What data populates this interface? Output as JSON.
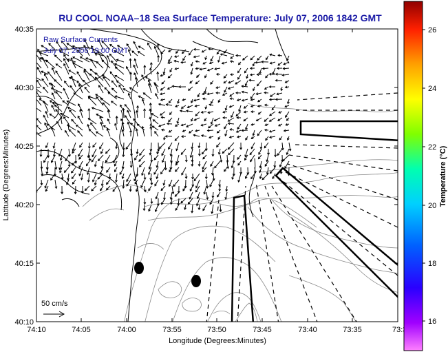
{
  "title": "RU COOL  NOAA–18  Sea Surface Temperature:  July 07, 2006 1842 GMT",
  "overlay": {
    "line1": "Raw Surface Currents",
    "line2": "July 07, 2006 19:00 GMT"
  },
  "scale_label": "50 cm/s",
  "x_axis": {
    "label": "Longitude (Degrees:Minutes)",
    "ticks": [
      "74:10",
      "74:05",
      "74:00",
      "73:55",
      "73:50",
      "73:45",
      "73:40",
      "73:35",
      "73:3"
    ]
  },
  "y_axis": {
    "label": "Latitude (Degrees:Minutes)",
    "ticks": [
      "40:35",
      "40:30",
      "40:25",
      "40:20",
      "40:15",
      "40:10"
    ]
  },
  "colorbar": {
    "label": "Temperature (°C)",
    "ticks": [
      "26",
      "24",
      "22",
      "20",
      "18",
      "16"
    ],
    "range": [
      15,
      27
    ]
  },
  "colors": {
    "title": "#1a1aa6",
    "land": "#ffffff",
    "coastline": "#000000",
    "bathymetry": "#888888",
    "vectors": "#000000"
  },
  "map": {
    "lon_range": [
      "74:10",
      "73:30"
    ],
    "lat_range": [
      "40:10",
      "40:35"
    ],
    "features": [
      "coastline",
      "bathymetry-contours",
      "current-vectors",
      "transect-boxes",
      "station-markers"
    ]
  }
}
